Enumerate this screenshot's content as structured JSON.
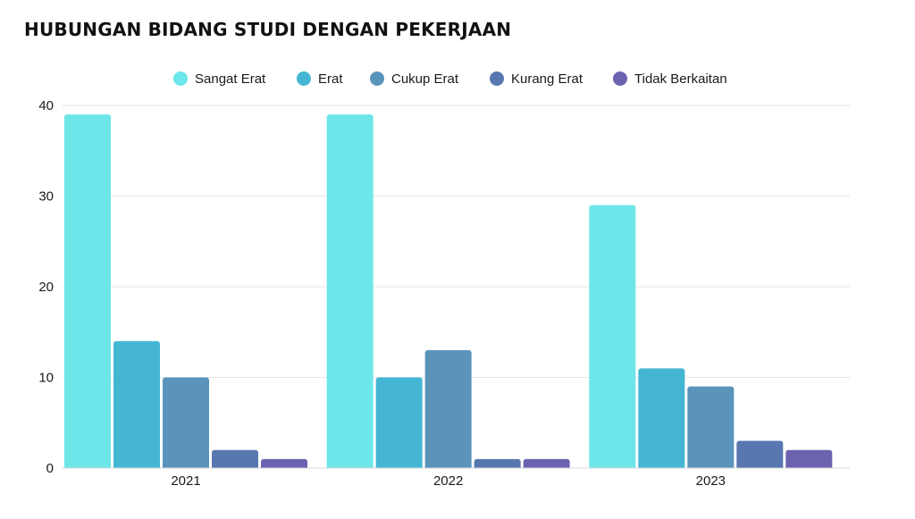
{
  "chart_data": {
    "type": "bar",
    "title": "HUBUNGAN BIDANG STUDI DENGAN PEKERJAAN",
    "categories": [
      "2021",
      "2022",
      "2023"
    ],
    "series": [
      {
        "name": "Sangat Erat",
        "color": "#6de6e9",
        "values": [
          39,
          39,
          29
        ]
      },
      {
        "name": "Erat",
        "color": "#44b6d4",
        "values": [
          14,
          10,
          11
        ]
      },
      {
        "name": "Cukup Erat",
        "color": "#5a94bb",
        "values": [
          10,
          13,
          9
        ]
      },
      {
        "name": "Kurang Erat",
        "color": "#5877b0",
        "values": [
          2,
          1,
          3
        ]
      },
      {
        "name": "Tidak Berkaitan",
        "color": "#6c63b0",
        "values": [
          1,
          1,
          2
        ]
      }
    ],
    "ylim": [
      0,
      40
    ],
    "yticks": [
      0,
      10,
      20,
      30,
      40
    ],
    "grid": true,
    "legend_position": "top"
  }
}
